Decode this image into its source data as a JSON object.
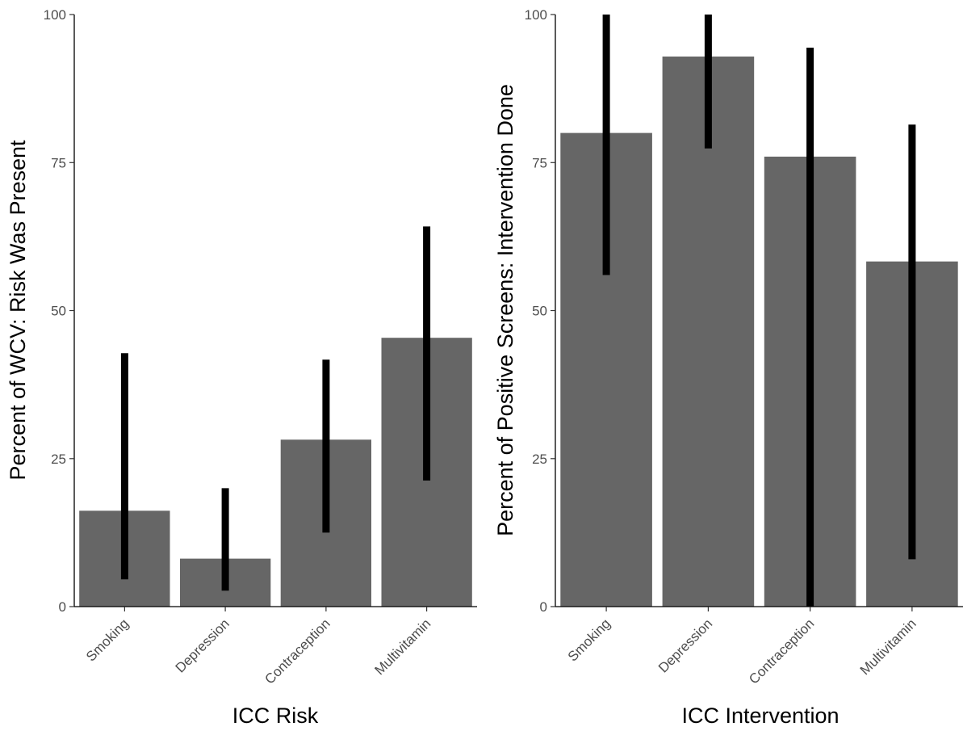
{
  "colors": {
    "bar": "#666666",
    "errorbar": "#000000",
    "axis": "#000000",
    "tick_text": "#4d4d4d"
  },
  "chart_data": [
    {
      "type": "bar",
      "title": "",
      "xlabel": "ICC Risk",
      "ylabel": "Percent of WCV: Risk Was Present",
      "categories": [
        "Smoking",
        "Depression",
        "Contraception",
        "Multivitamin"
      ],
      "values": [
        16.2,
        8.1,
        28.2,
        45.4
      ],
      "error_low": [
        4.6,
        2.7,
        12.5,
        21.3
      ],
      "error_high": [
        42.8,
        20.0,
        41.7,
        64.2
      ],
      "ylim": [
        0,
        100
      ],
      "yticks": [
        "0",
        "25",
        "50",
        "75",
        "100"
      ],
      "grid": false,
      "legend": "none"
    },
    {
      "type": "bar",
      "title": "",
      "xlabel": "ICC Intervention",
      "ylabel": "Percent of Positive Screens: Intervention Done",
      "categories": [
        "Smoking",
        "Depression",
        "Contraception",
        "Multivitamin"
      ],
      "values": [
        80.0,
        92.9,
        76.0,
        58.3
      ],
      "error_low": [
        56.0,
        77.4,
        0.0,
        8.0
      ],
      "error_high": [
        100.0,
        100.0,
        94.4,
        81.4
      ],
      "ylim": [
        0,
        100
      ],
      "yticks": [
        "0",
        "25",
        "50",
        "75",
        "100"
      ],
      "grid": false,
      "legend": "none"
    }
  ]
}
